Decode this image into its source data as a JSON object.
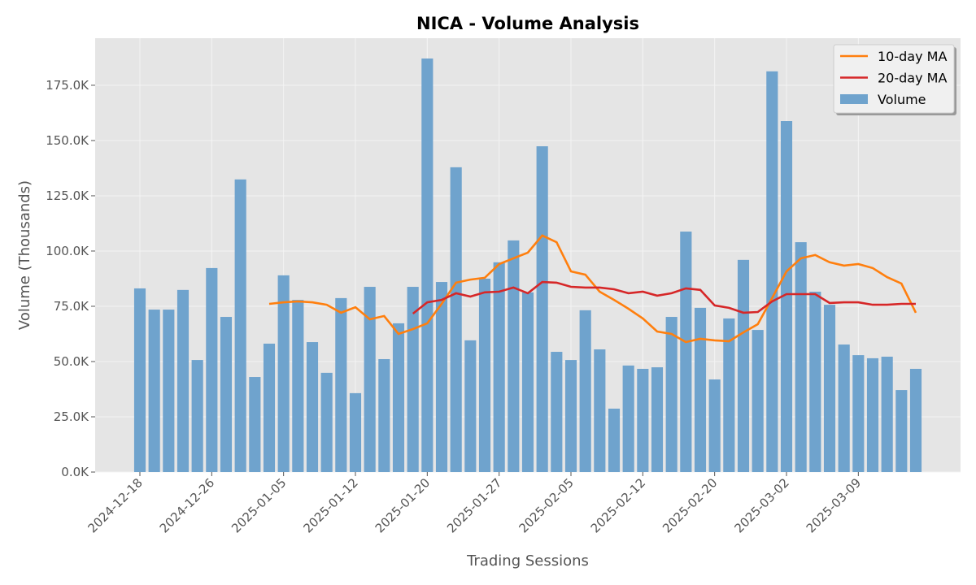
{
  "chart_data": {
    "type": "bar",
    "title": "NICA - Volume Analysis",
    "x_label": "Trading Sessions",
    "y_label": "Volume (Thousands)",
    "categories": [
      "2024-12-18",
      null,
      null,
      null,
      null,
      "2024-12-26",
      null,
      null,
      null,
      null,
      "2025-01-05",
      null,
      null,
      null,
      null,
      "2025-01-12",
      null,
      null,
      null,
      null,
      "2025-01-20",
      null,
      null,
      null,
      null,
      "2025-01-27",
      null,
      null,
      null,
      null,
      "2025-02-05",
      null,
      null,
      null,
      null,
      "2025-02-12",
      null,
      null,
      null,
      null,
      "2025-02-20",
      null,
      null,
      null,
      null,
      "2025-03-02",
      null,
      null,
      null,
      null,
      "2025-03-09",
      null,
      null,
      null,
      null
    ],
    "series": [
      {
        "name": "10-day MA",
        "type": "line",
        "color": "#ff7f0e",
        "values": [
          null,
          null,
          null,
          null,
          null,
          null,
          null,
          null,
          null,
          76100,
          76800,
          77200,
          76800,
          75700,
          72100,
          74600,
          69100,
          70600,
          62500,
          64700,
          67300,
          76100,
          85700,
          87100,
          87900,
          94100,
          96700,
          99300,
          107000,
          104000,
          90800,
          89300,
          81600,
          77900,
          73900,
          69500,
          63600,
          62500,
          58800,
          60300,
          59600,
          59200,
          63200,
          66900,
          78700,
          90800,
          96700,
          98200,
          94900,
          93400,
          94100,
          92300,
          88200,
          85300,
          72100
        ]
      },
      {
        "name": "20-day MA",
        "type": "line",
        "color": "#d62728",
        "values": [
          null,
          null,
          null,
          null,
          null,
          null,
          null,
          null,
          null,
          null,
          null,
          null,
          null,
          null,
          null,
          null,
          null,
          null,
          null,
          71700,
          76800,
          77900,
          80900,
          79400,
          81300,
          81600,
          83500,
          80900,
          86000,
          85700,
          83800,
          83500,
          83500,
          82700,
          80900,
          81600,
          79800,
          80900,
          83100,
          82400,
          75400,
          74300,
          72100,
          72400,
          77200,
          80500,
          80500,
          80500,
          76500,
          76800,
          76800,
          75700,
          75700,
          76100,
          76100
        ]
      },
      {
        "name": "Volume",
        "type": "bar",
        "color": "#6fa3cd",
        "values": [
          83100,
          73500,
          73500,
          82400,
          50700,
          92300,
          70200,
          132400,
          43000,
          58100,
          89000,
          77900,
          58800,
          44900,
          78700,
          35700,
          83800,
          51100,
          67300,
          83800,
          187100,
          86000,
          137900,
          59600,
          87500,
          94900,
          104800,
          81300,
          147400,
          54400,
          50700,
          73200,
          55500,
          28700,
          48200,
          46700,
          47400,
          70200,
          108800,
          74300,
          41900,
          69500,
          96000,
          64300,
          181300,
          158800,
          104000,
          81600,
          75700,
          57700,
          52900,
          51500,
          52200,
          37100,
          46700
        ]
      }
    ],
    "ylim": [
      0,
      196300
    ],
    "yticks": [
      {
        "value": 0,
        "label": "0.0K"
      },
      {
        "value": 25000,
        "label": "25.0K"
      },
      {
        "value": 50000,
        "label": "50.0K"
      },
      {
        "value": 75000,
        "label": "75.0K"
      },
      {
        "value": 100000,
        "label": "100.0K"
      },
      {
        "value": 125000,
        "label": "125.0K"
      },
      {
        "value": 150000,
        "label": "150.0K"
      },
      {
        "value": 175000,
        "label": "175.0K"
      }
    ],
    "grid": true,
    "legend": "upper right"
  }
}
